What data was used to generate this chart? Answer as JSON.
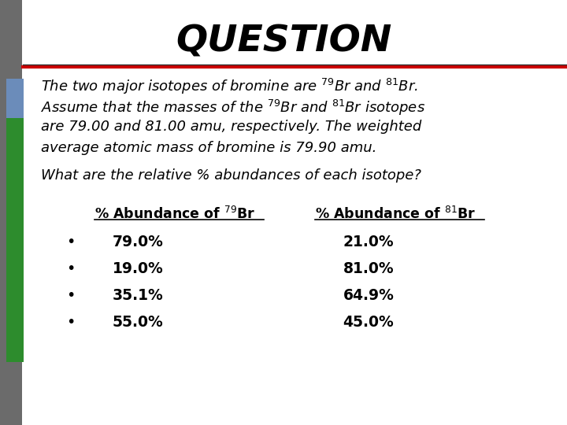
{
  "title": "QUESTION",
  "bg_color": "#ffffff",
  "title_color": "#000000",
  "red_line_color": "#cc0000",
  "dark_line_color": "#333333",
  "gray_bar_color": "#6b6b6b",
  "blue_bar_color": "#6b8cba",
  "green_bar_color": "#2d8c2d",
  "para_lines": [
    "The two major isotopes of bromine are $^{79}$Br and $^{81}$Br.",
    "Assume that the masses of the $^{79}$Br and $^{81}$Br isotopes",
    "are 79.00 and 81.00 amu, respectively. The weighted",
    "average atomic mass of bromine is 79.90 amu."
  ],
  "question_text": "What are the relative % abundances of each isotope?",
  "col1_header": "% Abundance of $^{79}$Br",
  "col2_header": "% Abundance of $^{81}$Br",
  "rows": [
    {
      "col1": "79.0%",
      "col2": "21.0%"
    },
    {
      "col1": "19.0%",
      "col2": "81.0%"
    },
    {
      "col1": "35.1%",
      "col2": "64.9%"
    },
    {
      "col1": "55.0%",
      "col2": "45.0%"
    }
  ]
}
